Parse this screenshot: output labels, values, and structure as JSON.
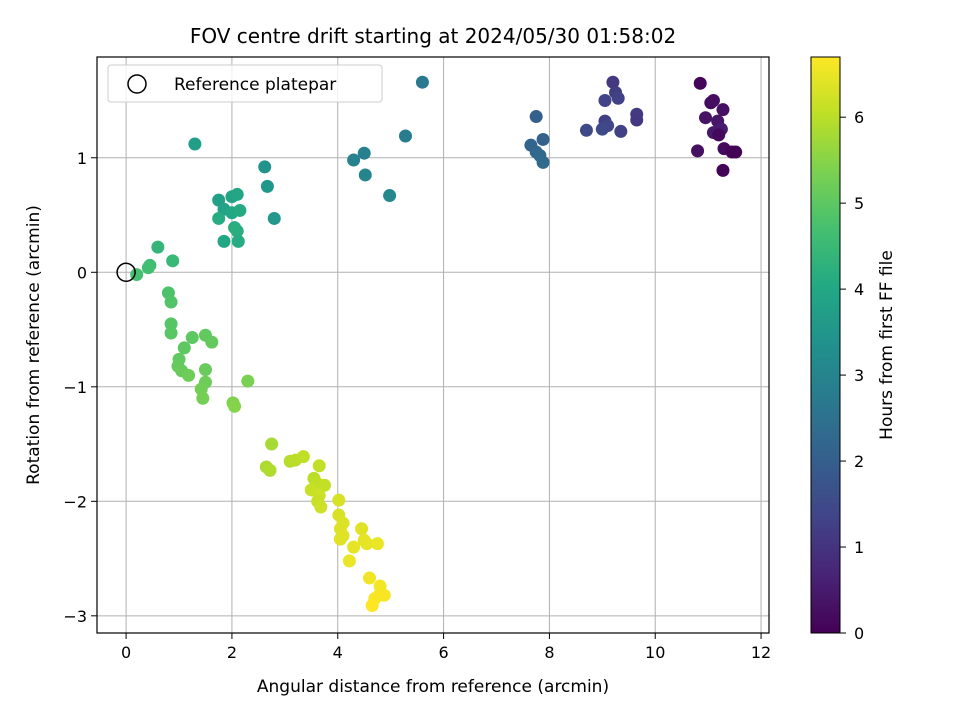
{
  "chart_data": {
    "type": "scatter",
    "title": "FOV centre drift starting at 2024/05/30 01:58:02",
    "xlabel": "Angular distance from reference (arcmin)",
    "ylabel": "Rotation from reference (arcmin)",
    "xlim": [
      -0.55,
      12.15
    ],
    "ylim": [
      -3.15,
      1.88
    ],
    "xticks": [
      0,
      2,
      4,
      6,
      8,
      10,
      12
    ],
    "yticks": [
      -3,
      -2,
      -1,
      0,
      1
    ],
    "xtick_labels": [
      "0",
      "2",
      "4",
      "6",
      "8",
      "10",
      "12"
    ],
    "ytick_labels": [
      "−3",
      "−2",
      "−1",
      "0",
      "1"
    ],
    "grid": true,
    "legend": {
      "location": "top-left",
      "entries": [
        "Reference platepar"
      ]
    },
    "reference_point": {
      "x": 0,
      "y": 0
    },
    "colorbar": {
      "label": "Hours from first FF file",
      "colormap": "viridis",
      "range": [
        0,
        6.7
      ],
      "ticks": [
        0,
        1,
        2,
        3,
        4,
        5,
        6
      ],
      "tick_labels": [
        "0",
        "1",
        "2",
        "3",
        "4",
        "5",
        "6"
      ]
    },
    "points": [
      {
        "x": 10.85,
        "y": 1.65,
        "c": 0.1
      },
      {
        "x": 11.05,
        "y": 1.48,
        "c": 0.2
      },
      {
        "x": 11.1,
        "y": 1.5,
        "c": 0.25
      },
      {
        "x": 11.28,
        "y": 1.42,
        "c": 0.3
      },
      {
        "x": 10.95,
        "y": 1.35,
        "c": 0.35
      },
      {
        "x": 11.18,
        "y": 1.32,
        "c": 0.4
      },
      {
        "x": 11.1,
        "y": 1.22,
        "c": 0.45
      },
      {
        "x": 11.25,
        "y": 1.25,
        "c": 0.5
      },
      {
        "x": 11.2,
        "y": 1.2,
        "c": 0.15
      },
      {
        "x": 10.8,
        "y": 1.06,
        "c": 0.3
      },
      {
        "x": 11.3,
        "y": 1.08,
        "c": 0.2
      },
      {
        "x": 11.45,
        "y": 1.05,
        "c": 0.1
      },
      {
        "x": 11.52,
        "y": 1.05,
        "c": 0.05
      },
      {
        "x": 11.28,
        "y": 0.89,
        "c": 0.05
      },
      {
        "x": 9.2,
        "y": 1.66,
        "c": 1.1
      },
      {
        "x": 9.25,
        "y": 1.57,
        "c": 1.2
      },
      {
        "x": 9.3,
        "y": 1.52,
        "c": 1.3
      },
      {
        "x": 9.05,
        "y": 1.5,
        "c": 1.35
      },
      {
        "x": 9.65,
        "y": 1.38,
        "c": 1.15
      },
      {
        "x": 9.65,
        "y": 1.33,
        "c": 1.1
      },
      {
        "x": 9.05,
        "y": 1.32,
        "c": 1.25
      },
      {
        "x": 9.1,
        "y": 1.28,
        "c": 1.4
      },
      {
        "x": 9.0,
        "y": 1.25,
        "c": 1.45
      },
      {
        "x": 9.35,
        "y": 1.23,
        "c": 1.3
      },
      {
        "x": 8.7,
        "y": 1.24,
        "c": 1.5
      },
      {
        "x": 7.75,
        "y": 1.36,
        "c": 2.0
      },
      {
        "x": 7.88,
        "y": 1.16,
        "c": 2.1
      },
      {
        "x": 7.65,
        "y": 1.11,
        "c": 2.15
      },
      {
        "x": 7.75,
        "y": 1.05,
        "c": 2.2
      },
      {
        "x": 7.82,
        "y": 1.02,
        "c": 2.25
      },
      {
        "x": 7.88,
        "y": 0.96,
        "c": 2.3
      },
      {
        "x": 5.6,
        "y": 1.66,
        "c": 2.7
      },
      {
        "x": 5.28,
        "y": 1.19,
        "c": 2.8
      },
      {
        "x": 4.5,
        "y": 1.04,
        "c": 2.9
      },
      {
        "x": 4.3,
        "y": 0.98,
        "c": 2.95
      },
      {
        "x": 4.52,
        "y": 0.85,
        "c": 3.0
      },
      {
        "x": 4.98,
        "y": 0.67,
        "c": 3.1
      },
      {
        "x": 2.62,
        "y": 0.92,
        "c": 3.4
      },
      {
        "x": 2.67,
        "y": 0.75,
        "c": 3.5
      },
      {
        "x": 2.8,
        "y": 0.47,
        "c": 3.55
      },
      {
        "x": 1.3,
        "y": 1.12,
        "c": 3.7
      },
      {
        "x": 1.75,
        "y": 0.63,
        "c": 3.8
      },
      {
        "x": 1.85,
        "y": 0.55,
        "c": 3.85
      },
      {
        "x": 2.0,
        "y": 0.66,
        "c": 3.9
      },
      {
        "x": 2.1,
        "y": 0.68,
        "c": 3.95
      },
      {
        "x": 2.0,
        "y": 0.52,
        "c": 4.0
      },
      {
        "x": 2.15,
        "y": 0.54,
        "c": 4.05
      },
      {
        "x": 1.75,
        "y": 0.47,
        "c": 4.1
      },
      {
        "x": 2.05,
        "y": 0.39,
        "c": 4.15
      },
      {
        "x": 2.1,
        "y": 0.36,
        "c": 4.2
      },
      {
        "x": 1.85,
        "y": 0.27,
        "c": 4.0
      },
      {
        "x": 2.12,
        "y": 0.27,
        "c": 4.1
      },
      {
        "x": 0.6,
        "y": 0.22,
        "c": 4.4
      },
      {
        "x": 0.88,
        "y": 0.1,
        "c": 4.5
      },
      {
        "x": 0.45,
        "y": 0.06,
        "c": 4.6
      },
      {
        "x": 0.42,
        "y": 0.04,
        "c": 4.65
      },
      {
        "x": 0.2,
        "y": -0.02,
        "c": 4.7
      },
      {
        "x": 0.8,
        "y": -0.18,
        "c": 4.8
      },
      {
        "x": 0.85,
        "y": -0.26,
        "c": 4.85
      },
      {
        "x": 0.85,
        "y": -0.45,
        "c": 4.9
      },
      {
        "x": 0.85,
        "y": -0.53,
        "c": 4.95
      },
      {
        "x": 1.25,
        "y": -0.57,
        "c": 5.0
      },
      {
        "x": 1.5,
        "y": -0.55,
        "c": 5.05
      },
      {
        "x": 1.62,
        "y": -0.61,
        "c": 5.1
      },
      {
        "x": 1.1,
        "y": -0.66,
        "c": 5.0
      },
      {
        "x": 1.0,
        "y": -0.76,
        "c": 5.05
      },
      {
        "x": 0.98,
        "y": -0.82,
        "c": 5.1
      },
      {
        "x": 1.05,
        "y": -0.86,
        "c": 5.15
      },
      {
        "x": 1.18,
        "y": -0.9,
        "c": 5.2
      },
      {
        "x": 1.5,
        "y": -0.85,
        "c": 5.15
      },
      {
        "x": 1.5,
        "y": -0.96,
        "c": 5.2
      },
      {
        "x": 1.42,
        "y": -1.02,
        "c": 5.25
      },
      {
        "x": 1.45,
        "y": -1.1,
        "c": 5.3
      },
      {
        "x": 2.3,
        "y": -0.95,
        "c": 5.35
      },
      {
        "x": 2.02,
        "y": -1.14,
        "c": 5.4
      },
      {
        "x": 2.05,
        "y": -1.17,
        "c": 5.45
      },
      {
        "x": 2.75,
        "y": -1.5,
        "c": 5.8
      },
      {
        "x": 2.65,
        "y": -1.7,
        "c": 5.85
      },
      {
        "x": 2.72,
        "y": -1.73,
        "c": 5.9
      },
      {
        "x": 3.1,
        "y": -1.65,
        "c": 5.95
      },
      {
        "x": 3.2,
        "y": -1.64,
        "c": 6.0
      },
      {
        "x": 3.35,
        "y": -1.61,
        "c": 6.05
      },
      {
        "x": 3.65,
        "y": -1.69,
        "c": 6.1
      },
      {
        "x": 3.55,
        "y": -1.8,
        "c": 6.0
      },
      {
        "x": 3.6,
        "y": -1.84,
        "c": 6.05
      },
      {
        "x": 3.75,
        "y": -1.86,
        "c": 6.1
      },
      {
        "x": 3.5,
        "y": -1.9,
        "c": 6.15
      },
      {
        "x": 3.65,
        "y": -1.95,
        "c": 6.2
      },
      {
        "x": 3.62,
        "y": -2.0,
        "c": 6.15
      },
      {
        "x": 3.68,
        "y": -2.05,
        "c": 6.2
      },
      {
        "x": 4.02,
        "y": -1.99,
        "c": 6.3
      },
      {
        "x": 4.02,
        "y": -2.12,
        "c": 6.3
      },
      {
        "x": 4.1,
        "y": -2.19,
        "c": 6.35
      },
      {
        "x": 4.05,
        "y": -2.24,
        "c": 6.35
      },
      {
        "x": 4.1,
        "y": -2.3,
        "c": 6.4
      },
      {
        "x": 4.05,
        "y": -2.33,
        "c": 6.4
      },
      {
        "x": 4.45,
        "y": -2.24,
        "c": 6.4
      },
      {
        "x": 4.5,
        "y": -2.34,
        "c": 6.45
      },
      {
        "x": 4.55,
        "y": -2.37,
        "c": 6.45
      },
      {
        "x": 4.75,
        "y": -2.37,
        "c": 6.5
      },
      {
        "x": 4.3,
        "y": -2.4,
        "c": 6.45
      },
      {
        "x": 4.22,
        "y": -2.52,
        "c": 6.5
      },
      {
        "x": 4.6,
        "y": -2.67,
        "c": 6.55
      },
      {
        "x": 4.8,
        "y": -2.74,
        "c": 6.6
      },
      {
        "x": 4.78,
        "y": -2.82,
        "c": 6.6
      },
      {
        "x": 4.88,
        "y": -2.82,
        "c": 6.65
      },
      {
        "x": 4.7,
        "y": -2.85,
        "c": 6.65
      },
      {
        "x": 4.65,
        "y": -2.91,
        "c": 6.7
      }
    ]
  }
}
